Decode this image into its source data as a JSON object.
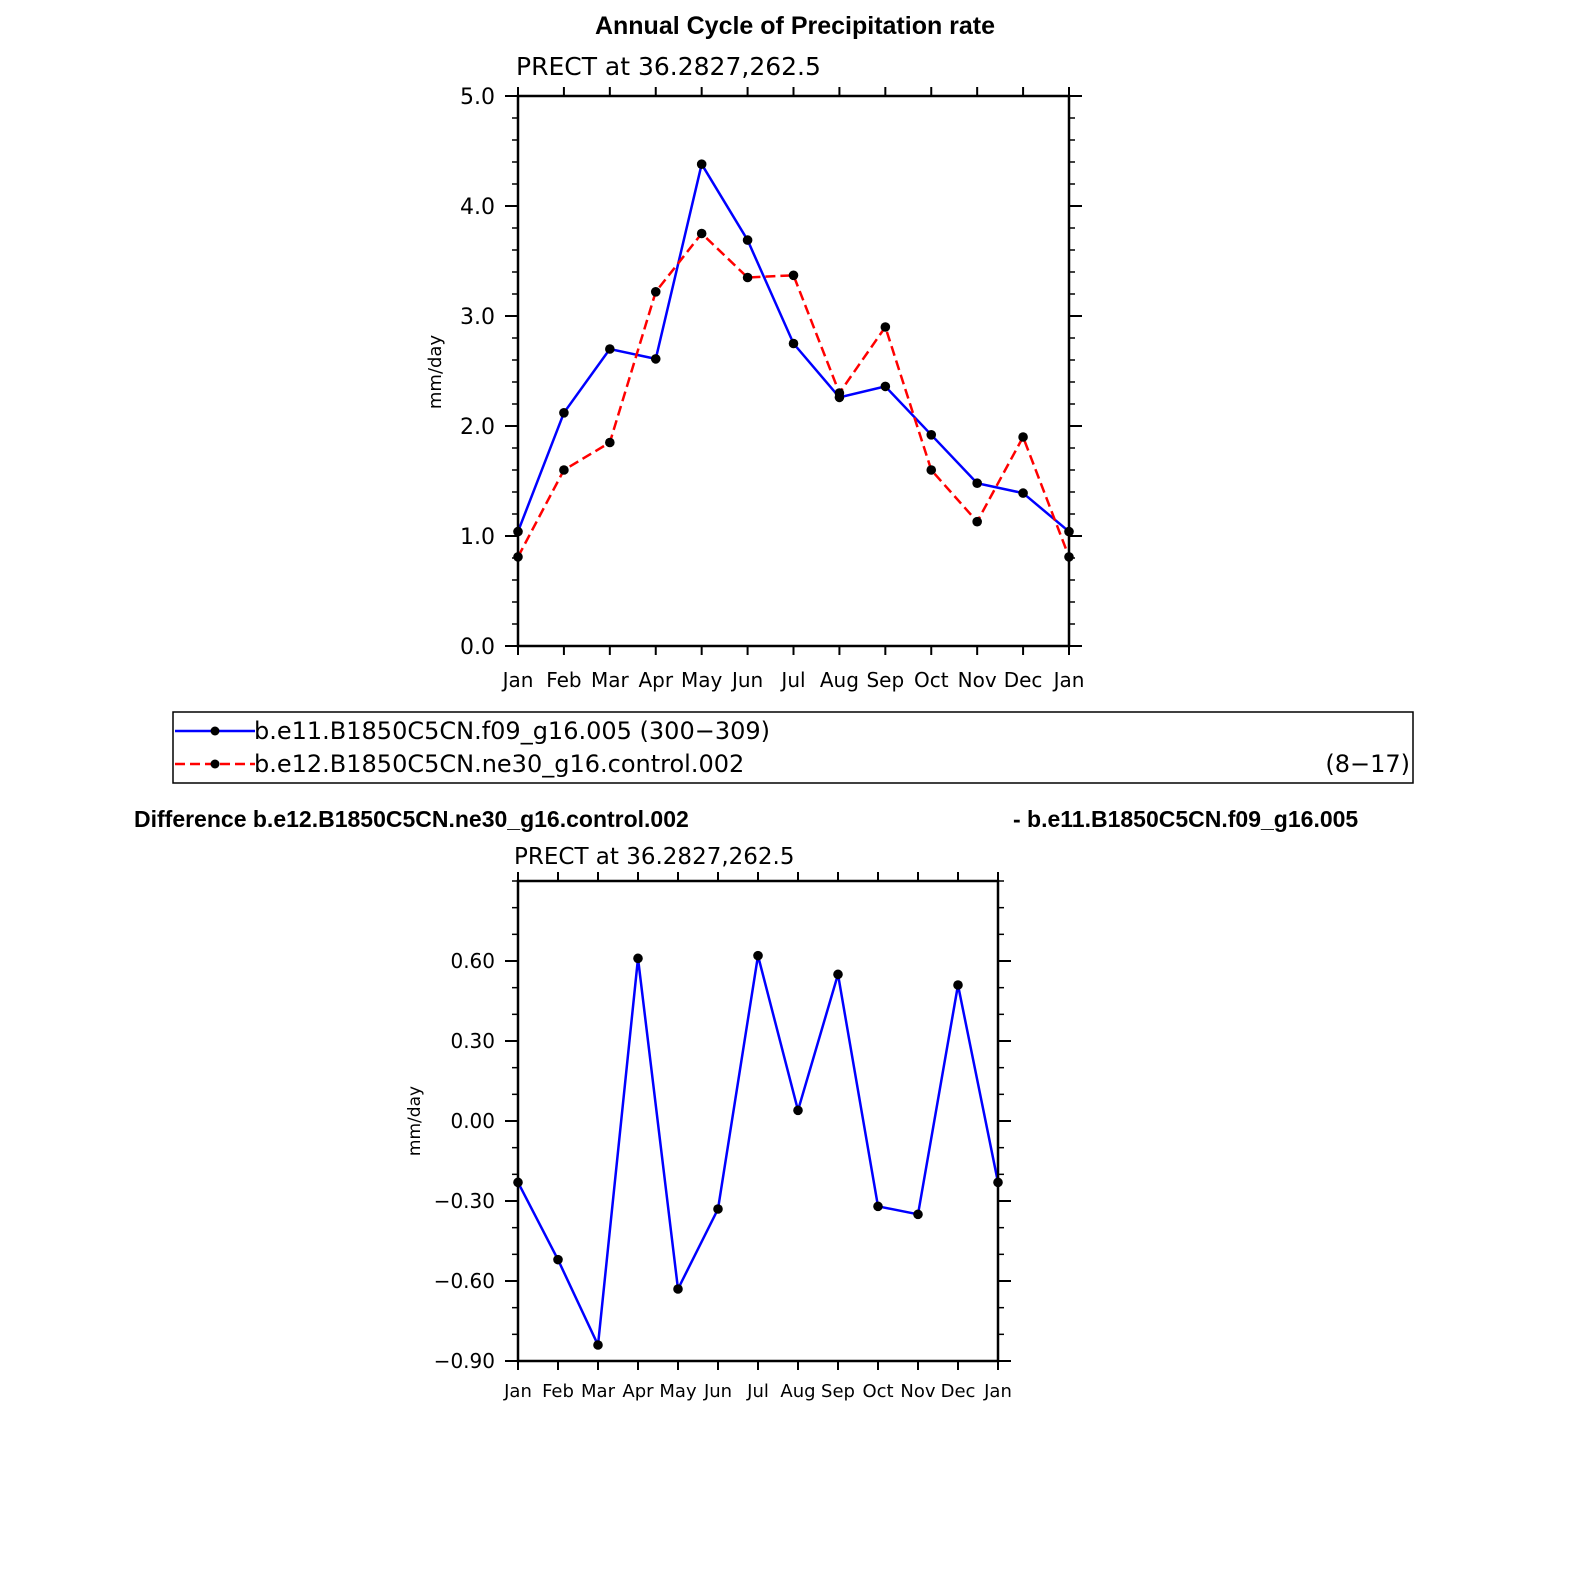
{
  "figure": {
    "title": "Annual Cycle of Precipitation rate",
    "diff_title_left": "Difference b.e12.B1850C5CN.ne30_g16.control.002",
    "diff_title_right": "- b.e11.B1850C5CN.f09_g16.005"
  },
  "legend": {
    "entries": [
      {
        "label": "b.e11.B1850C5CN.f09_g16.005 (300−309)",
        "suffix": "",
        "color": "#0000ff",
        "dashed": false
      },
      {
        "label": "b.e12.B1850C5CN.ne30_g16.control.002",
        "suffix": "(8−17)",
        "color": "#ff0000",
        "dashed": true
      }
    ]
  },
  "chart_data": [
    {
      "type": "line",
      "subtitle": "PRECT at 36.2827,262.5",
      "ylabel": "mm/day",
      "categories": [
        "Jan",
        "Feb",
        "Mar",
        "Apr",
        "May",
        "Jun",
        "Jul",
        "Aug",
        "Sep",
        "Oct",
        "Nov",
        "Dec",
        "Jan"
      ],
      "ylim": [
        0.0,
        5.0
      ],
      "yticks": [
        0.0,
        1.0,
        2.0,
        3.0,
        4.0,
        5.0
      ],
      "ytick_labels": [
        "0.0",
        "1.0",
        "2.0",
        "3.0",
        "4.0",
        "5.0"
      ],
      "grid": false,
      "series": [
        {
          "name": "b.e11.B1850C5CN.f09_g16.005",
          "color": "#0000ff",
          "dashed": false,
          "values": [
            1.04,
            2.12,
            2.7,
            2.61,
            4.38,
            3.69,
            2.75,
            2.26,
            2.36,
            1.92,
            1.48,
            1.39,
            1.04
          ]
        },
        {
          "name": "b.e12.B1850C5CN.ne30_g16.control.002",
          "color": "#ff0000",
          "dashed": true,
          "values": [
            0.81,
            1.6,
            1.85,
            3.22,
            3.75,
            3.35,
            3.37,
            2.3,
            2.9,
            1.6,
            1.13,
            1.9,
            0.81
          ]
        }
      ]
    },
    {
      "type": "line",
      "subtitle": "PRECT at 36.2827,262.5",
      "ylabel": "mm/day",
      "categories": [
        "Jan",
        "Feb",
        "Mar",
        "Apr",
        "May",
        "Jun",
        "Jul",
        "Aug",
        "Sep",
        "Oct",
        "Nov",
        "Dec",
        "Jan"
      ],
      "ylim": [
        -0.9,
        0.9
      ],
      "yticks": [
        -0.9,
        -0.6,
        -0.3,
        0.0,
        0.3,
        0.6
      ],
      "ytick_labels": [
        "−0.90",
        "−0.60",
        "−0.30",
        "0.00",
        "0.30",
        "0.60"
      ],
      "grid": false,
      "series": [
        {
          "name": "",
          "color": "#0000ff",
          "dashed": false,
          "values": [
            -0.23,
            -0.52,
            -0.84,
            0.61,
            -0.63,
            -0.33,
            0.62,
            0.04,
            0.55,
            -0.32,
            -0.35,
            0.51,
            -0.23
          ]
        }
      ]
    }
  ]
}
